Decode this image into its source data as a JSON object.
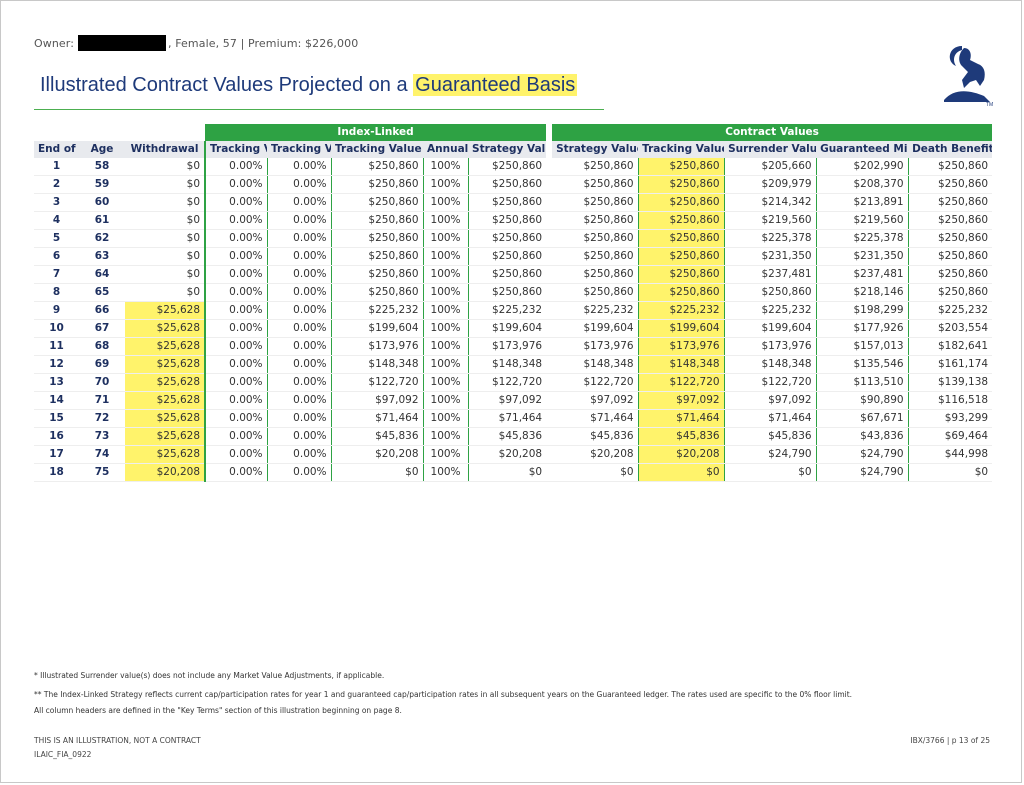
{
  "header": {
    "owner_label": "Owner:",
    "owner_info": ", Female, 57 | Premium: $226,000"
  },
  "title": {
    "prefix": "Illustrated Contract Values Projected on a ",
    "highlight": "Guaranteed Basis"
  },
  "table": {
    "groups": {
      "index_linked": "Index-Linked",
      "contract_values": "Contract Values"
    },
    "columns": [
      "End of Year",
      "Age",
      "Withdrawal",
      "Tracking Value Floor",
      "Tracking Value Return",
      "Tracking Value",
      "Annual Lock",
      "Strategy Value**",
      "Strategy Value",
      "Tracking Value",
      "Surrender Value*",
      "Guaranteed Minimum Value",
      "Death Benefit"
    ],
    "rows": [
      [
        "1",
        "58",
        "$0",
        "0.00%",
        "0.00%",
        "$250,860",
        "100%",
        "$250,860",
        "$250,860",
        "$250,860",
        "$205,660",
        "$202,990",
        "$250,860"
      ],
      [
        "2",
        "59",
        "$0",
        "0.00%",
        "0.00%",
        "$250,860",
        "100%",
        "$250,860",
        "$250,860",
        "$250,860",
        "$209,979",
        "$208,370",
        "$250,860"
      ],
      [
        "3",
        "60",
        "$0",
        "0.00%",
        "0.00%",
        "$250,860",
        "100%",
        "$250,860",
        "$250,860",
        "$250,860",
        "$214,342",
        "$213,891",
        "$250,860"
      ],
      [
        "4",
        "61",
        "$0",
        "0.00%",
        "0.00%",
        "$250,860",
        "100%",
        "$250,860",
        "$250,860",
        "$250,860",
        "$219,560",
        "$219,560",
        "$250,860"
      ],
      [
        "5",
        "62",
        "$0",
        "0.00%",
        "0.00%",
        "$250,860",
        "100%",
        "$250,860",
        "$250,860",
        "$250,860",
        "$225,378",
        "$225,378",
        "$250,860"
      ],
      [
        "6",
        "63",
        "$0",
        "0.00%",
        "0.00%",
        "$250,860",
        "100%",
        "$250,860",
        "$250,860",
        "$250,860",
        "$231,350",
        "$231,350",
        "$250,860"
      ],
      [
        "7",
        "64",
        "$0",
        "0.00%",
        "0.00%",
        "$250,860",
        "100%",
        "$250,860",
        "$250,860",
        "$250,860",
        "$237,481",
        "$237,481",
        "$250,860"
      ],
      [
        "8",
        "65",
        "$0",
        "0.00%",
        "0.00%",
        "$250,860",
        "100%",
        "$250,860",
        "$250,860",
        "$250,860",
        "$250,860",
        "$218,146",
        "$250,860"
      ],
      [
        "9",
        "66",
        "$25,628",
        "0.00%",
        "0.00%",
        "$225,232",
        "100%",
        "$225,232",
        "$225,232",
        "$225,232",
        "$225,232",
        "$198,299",
        "$225,232"
      ],
      [
        "10",
        "67",
        "$25,628",
        "0.00%",
        "0.00%",
        "$199,604",
        "100%",
        "$199,604",
        "$199,604",
        "$199,604",
        "$199,604",
        "$177,926",
        "$203,554"
      ],
      [
        "11",
        "68",
        "$25,628",
        "0.00%",
        "0.00%",
        "$173,976",
        "100%",
        "$173,976",
        "$173,976",
        "$173,976",
        "$173,976",
        "$157,013",
        "$182,641"
      ],
      [
        "12",
        "69",
        "$25,628",
        "0.00%",
        "0.00%",
        "$148,348",
        "100%",
        "$148,348",
        "$148,348",
        "$148,348",
        "$148,348",
        "$135,546",
        "$161,174"
      ],
      [
        "13",
        "70",
        "$25,628",
        "0.00%",
        "0.00%",
        "$122,720",
        "100%",
        "$122,720",
        "$122,720",
        "$122,720",
        "$122,720",
        "$113,510",
        "$139,138"
      ],
      [
        "14",
        "71",
        "$25,628",
        "0.00%",
        "0.00%",
        "$97,092",
        "100%",
        "$97,092",
        "$97,092",
        "$97,092",
        "$97,092",
        "$90,890",
        "$116,518"
      ],
      [
        "15",
        "72",
        "$25,628",
        "0.00%",
        "0.00%",
        "$71,464",
        "100%",
        "$71,464",
        "$71,464",
        "$71,464",
        "$71,464",
        "$67,671",
        "$93,299"
      ],
      [
        "16",
        "73",
        "$25,628",
        "0.00%",
        "0.00%",
        "$45,836",
        "100%",
        "$45,836",
        "$45,836",
        "$45,836",
        "$45,836",
        "$43,836",
        "$69,464"
      ],
      [
        "17",
        "74",
        "$25,628",
        "0.00%",
        "0.00%",
        "$20,208",
        "100%",
        "$20,208",
        "$20,208",
        "$20,208",
        "$24,790",
        "$24,790",
        "$44,998"
      ],
      [
        "18",
        "75",
        "$20,208",
        "0.00%",
        "0.00%",
        "$0",
        "100%",
        "$0",
        "$0",
        "$0",
        "$0",
        "$24,790",
        "$0"
      ]
    ]
  },
  "notes": {
    "surrender": "* Illustrated Surrender value(s) does not include any Market Value Adjustments, if applicable.",
    "strategy": "** The Index-Linked Strategy reflects current cap/participation rates for year 1 and guaranteed cap/participation rates in all subsequent years on the Guaranteed ledger. The rates used are specific to the 0% floor limit.",
    "key_terms": "All column headers are defined in the \"Key Terms\" section of this illustration beginning on page 8."
  },
  "footer": {
    "disclaimer": "THIS IS AN ILLUSTRATION, NOT A CONTRACT",
    "form_code": "ILAIC_FIA_0922",
    "page_info": "IBX/3766 | p 13 of 25"
  },
  "logo": {
    "icon": "ibex-logo-icon",
    "mark": "TM"
  },
  "colors": {
    "accent_green": "#2ea244",
    "title_blue": "#1e3a7a",
    "highlight": "#fff36b",
    "header_bg": "#e8eaee"
  }
}
